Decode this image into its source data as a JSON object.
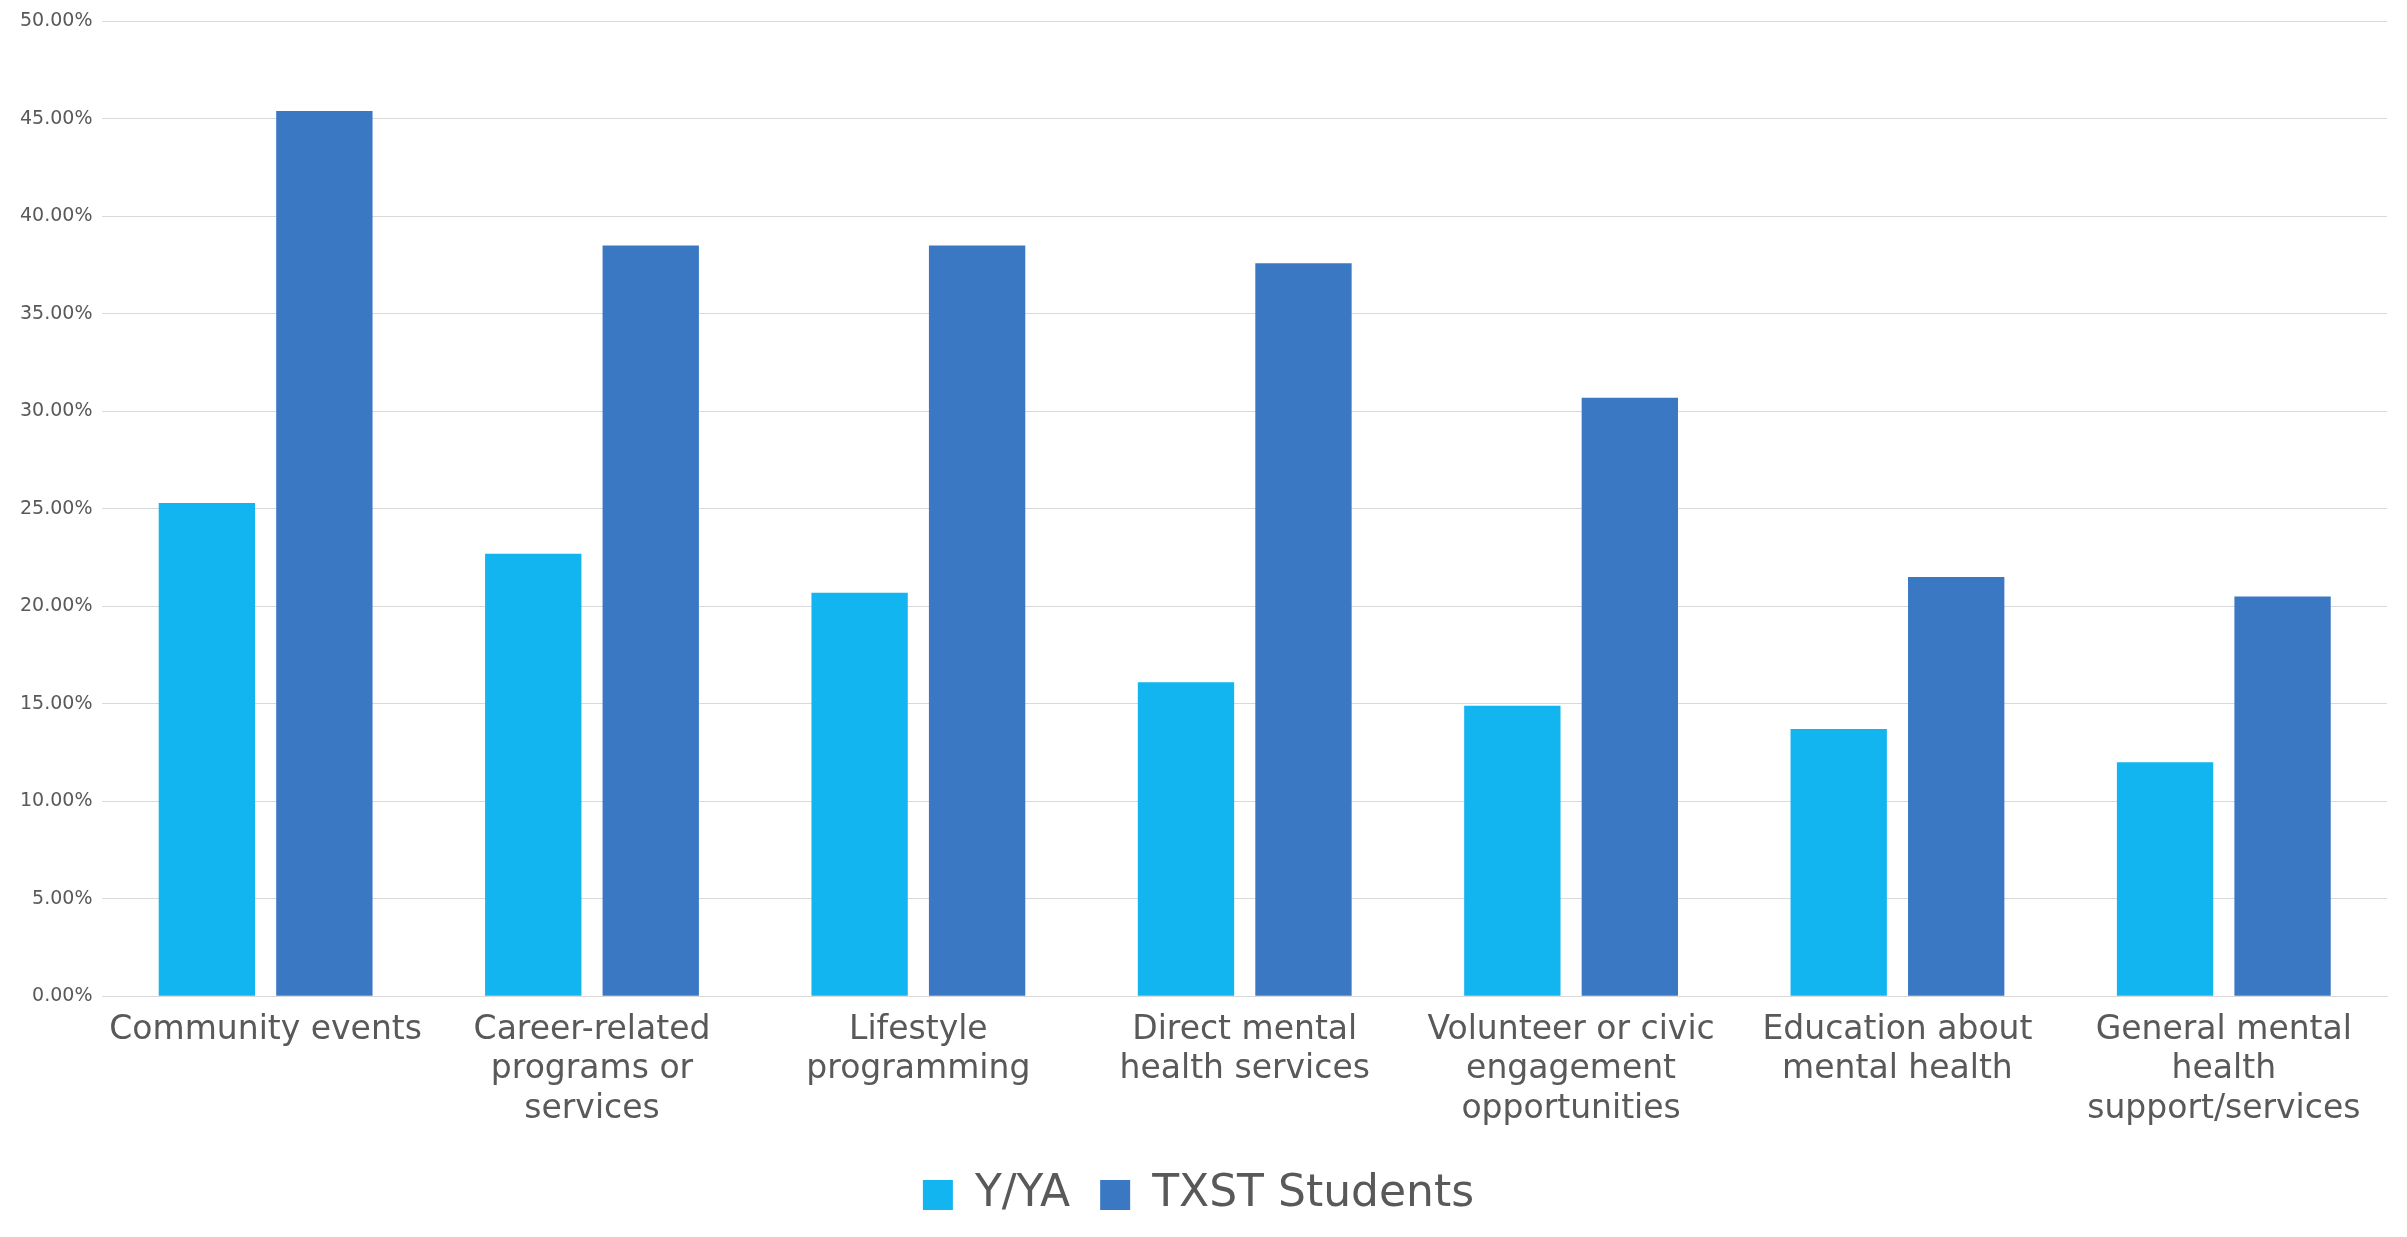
{
  "chart_data": {
    "type": "bar",
    "categories": [
      "Community events",
      "Career-related programs or services",
      "Lifestyle programming",
      "Direct mental health services",
      "Volunteer or civic engagement opportunities",
      "Education about mental health",
      "General mental health support/services"
    ],
    "series": [
      {
        "name": "Y/YA",
        "color": "#12b5f0",
        "values": [
          25.3,
          22.7,
          20.7,
          16.1,
          14.9,
          13.7,
          12.0
        ]
      },
      {
        "name": "TXST Students",
        "color": "#3b78c4",
        "values": [
          45.4,
          38.5,
          38.5,
          37.6,
          30.7,
          21.5,
          20.5
        ]
      }
    ],
    "ylim": [
      0,
      50
    ],
    "yticks": [
      {
        "value": 0,
        "label": "0.00%"
      },
      {
        "value": 5,
        "label": "5.00%"
      },
      {
        "value": 10,
        "label": "10.00%"
      },
      {
        "value": 15,
        "label": "15.00%"
      },
      {
        "value": 20,
        "label": "20.00%"
      },
      {
        "value": 25,
        "label": "25.00%"
      },
      {
        "value": 30,
        "label": "30.00%"
      },
      {
        "value": 35,
        "label": "35.00%"
      },
      {
        "value": 40,
        "label": "40.00%"
      },
      {
        "value": 45,
        "label": "45.00%"
      },
      {
        "value": 50,
        "label": "50.00%"
      }
    ],
    "grid": "y",
    "legend": "bottom"
  }
}
